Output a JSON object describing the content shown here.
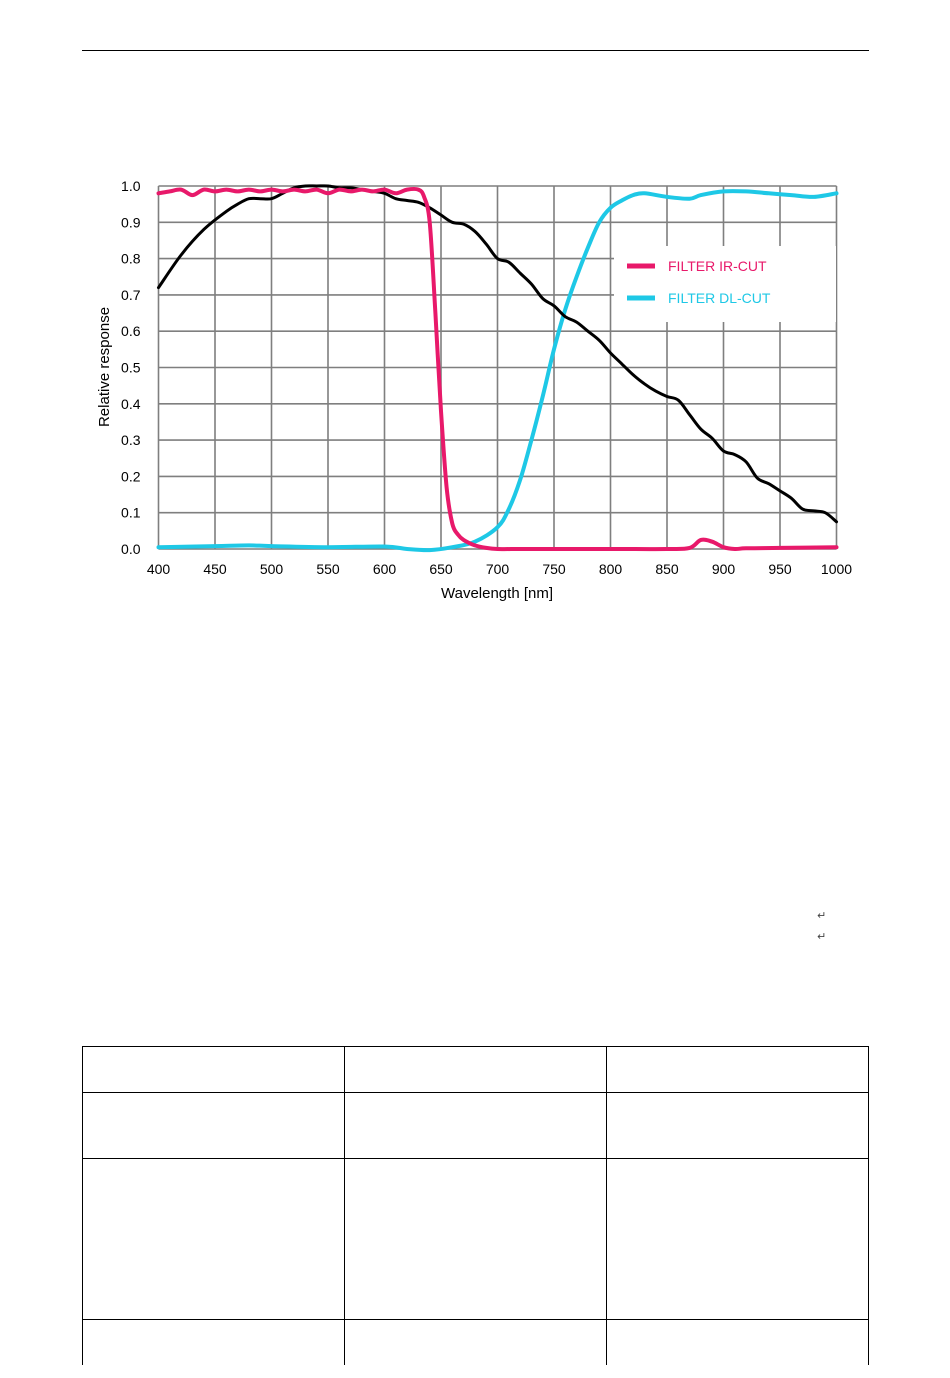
{
  "chart_data": {
    "type": "line",
    "xlabel": "Wavelength [nm]",
    "ylabel": "Relative response",
    "xlim": [
      400,
      1000
    ],
    "ylim": [
      0,
      1.0
    ],
    "x_ticks": [
      "400",
      "450",
      "500",
      "550",
      "600",
      "650",
      "700",
      "750",
      "800",
      "850",
      "900",
      "950",
      "1000"
    ],
    "y_ticks": [
      "0.0",
      "0.1",
      "0.2",
      "0.3",
      "0.4",
      "0.5",
      "0.6",
      "0.7",
      "0.8",
      "0.9",
      "1.0"
    ],
    "grid": true,
    "legend_position": "top-right",
    "series": [
      {
        "color": "#000000",
        "x": [
          400,
          420,
          440,
          460,
          470,
          480,
          490,
          500,
          510,
          520,
          530,
          540,
          550,
          560,
          570,
          580,
          590,
          600,
          610,
          620,
          630,
          640,
          650,
          660,
          670,
          680,
          690,
          700,
          710,
          720,
          730,
          740,
          750,
          760,
          770,
          780,
          790,
          800,
          810,
          820,
          830,
          840,
          850,
          860,
          870,
          880,
          890,
          900,
          910,
          920,
          930,
          940,
          950,
          960,
          970,
          980,
          990,
          1000
        ],
        "y": [
          0.72,
          0.81,
          0.88,
          0.93,
          0.95,
          0.965,
          0.965,
          0.965,
          0.98,
          0.995,
          1.0,
          1.0,
          1.0,
          0.995,
          0.995,
          0.99,
          0.985,
          0.98,
          0.965,
          0.96,
          0.955,
          0.94,
          0.92,
          0.9,
          0.895,
          0.875,
          0.84,
          0.8,
          0.79,
          0.76,
          0.73,
          0.69,
          0.67,
          0.64,
          0.625,
          0.6,
          0.575,
          0.54,
          0.51,
          0.48,
          0.455,
          0.435,
          0.42,
          0.41,
          0.37,
          0.33,
          0.305,
          0.27,
          0.26,
          0.24,
          0.195,
          0.18,
          0.16,
          0.14,
          0.11,
          0.105,
          0.1,
          0.075
        ]
      },
      {
        "name": "FILTER IR-CUT",
        "color": "#e8196a",
        "x": [
          400,
          410,
          420,
          430,
          440,
          450,
          460,
          470,
          480,
          490,
          500,
          510,
          520,
          530,
          540,
          550,
          560,
          570,
          580,
          590,
          600,
          610,
          620,
          630,
          635,
          640,
          645,
          650,
          655,
          660,
          665,
          670,
          680,
          690,
          700,
          720,
          750,
          800,
          850,
          870,
          880,
          890,
          900,
          910,
          920,
          950,
          1000
        ],
        "y": [
          0.98,
          0.985,
          0.99,
          0.975,
          0.99,
          0.985,
          0.99,
          0.985,
          0.99,
          0.985,
          0.99,
          0.985,
          0.99,
          0.985,
          0.99,
          0.98,
          0.99,
          0.985,
          0.99,
          0.985,
          0.99,
          0.98,
          0.99,
          0.99,
          0.97,
          0.9,
          0.65,
          0.38,
          0.17,
          0.07,
          0.04,
          0.025,
          0.01,
          0.003,
          0.0,
          0.0,
          0.0,
          0.0,
          0.0,
          0.003,
          0.025,
          0.02,
          0.005,
          0.0,
          0.002,
          0.003,
          0.005
        ]
      },
      {
        "name": "FILTER DL-CUT",
        "color": "#1ec8e6",
        "x": [
          400,
          450,
          480,
          500,
          550,
          600,
          620,
          640,
          660,
          680,
          700,
          710,
          720,
          730,
          740,
          750,
          760,
          770,
          780,
          790,
          800,
          810,
          820,
          830,
          850,
          870,
          880,
          900,
          920,
          940,
          960,
          980,
          1000
        ],
        "y": [
          0.005,
          0.008,
          0.01,
          0.008,
          0.005,
          0.007,
          0.0,
          -0.003,
          0.005,
          0.02,
          0.06,
          0.11,
          0.19,
          0.3,
          0.42,
          0.55,
          0.66,
          0.75,
          0.83,
          0.9,
          0.94,
          0.96,
          0.975,
          0.98,
          0.97,
          0.965,
          0.975,
          0.985,
          0.985,
          0.98,
          0.975,
          0.97,
          0.98
        ]
      }
    ]
  },
  "return_marks": [
    "↵",
    "↵"
  ],
  "table": {
    "rows": [
      [
        "",
        "",
        ""
      ],
      [
        "",
        "",
        ""
      ],
      [
        "",
        "",
        ""
      ],
      [
        "",
        "",
        ""
      ]
    ]
  }
}
